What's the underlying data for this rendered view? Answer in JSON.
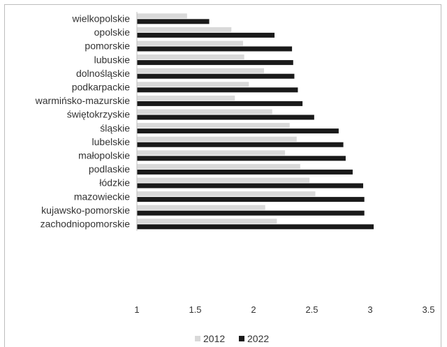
{
  "chart_data": {
    "type": "bar",
    "orientation": "horizontal",
    "categories": [
      "wielkopolskie",
      "opolskie",
      "pomorskie",
      "lubuskie",
      "dolnośląskie",
      "podkarpackie",
      "warmińsko-mazurskie",
      "świętokrzyskie",
      "śląskie",
      "lubelskie",
      "małopolskie",
      "podlaskie",
      "łódzkie",
      "mazowieckie",
      "kujawsko-pomorskie",
      "zachodniopomorskie"
    ],
    "series": [
      {
        "name": "2012",
        "color": "#d9d9d9",
        "values": [
          1.43,
          1.81,
          1.91,
          1.92,
          2.09,
          1.96,
          1.84,
          2.16,
          2.31,
          2.37,
          2.27,
          2.4,
          2.48,
          2.53,
          2.1,
          2.2
        ]
      },
      {
        "name": "2022",
        "color": "#1a1a1a",
        "values": [
          1.62,
          2.18,
          2.33,
          2.34,
          2.35,
          2.38,
          2.42,
          2.52,
          2.73,
          2.77,
          2.79,
          2.85,
          2.94,
          2.95,
          2.95,
          3.03
        ]
      }
    ],
    "xlim": [
      1,
      3.5
    ],
    "xticks": [
      "1",
      "1.5",
      "2",
      "2.5",
      "3",
      "3.5"
    ],
    "grid": false,
    "legend_position": "bottom"
  }
}
